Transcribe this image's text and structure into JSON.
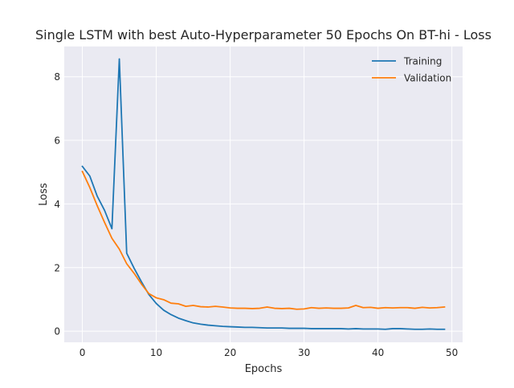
{
  "chart_data": {
    "type": "line",
    "title": "Single LSTM with best Auto-Hyperparameter 50 Epochs On BT-hi - Loss",
    "xlabel": "Epochs",
    "ylabel": "Loss",
    "xlim": [
      -2.45,
      51.45
    ],
    "ylim": [
      -0.35,
      8.95
    ],
    "xticks": [
      0,
      10,
      20,
      30,
      40,
      50
    ],
    "yticks": [
      0,
      2,
      4,
      6,
      8
    ],
    "grid": true,
    "legend_position": "top-right",
    "x": [
      0,
      1,
      2,
      3,
      4,
      5,
      6,
      7,
      8,
      9,
      10,
      11,
      12,
      13,
      14,
      15,
      16,
      17,
      18,
      19,
      20,
      21,
      22,
      23,
      24,
      25,
      26,
      27,
      28,
      29,
      30,
      31,
      32,
      33,
      34,
      35,
      36,
      37,
      38,
      39,
      40,
      41,
      42,
      43,
      44,
      45,
      46,
      47,
      48,
      49
    ],
    "series": [
      {
        "name": "Training",
        "color": "#1f77b4",
        "values": [
          5.18,
          4.88,
          4.25,
          3.8,
          3.22,
          8.56,
          2.45,
          1.98,
          1.55,
          1.15,
          0.87,
          0.66,
          0.52,
          0.41,
          0.33,
          0.26,
          0.22,
          0.19,
          0.17,
          0.15,
          0.14,
          0.13,
          0.12,
          0.12,
          0.11,
          0.1,
          0.1,
          0.1,
          0.09,
          0.09,
          0.09,
          0.08,
          0.08,
          0.08,
          0.08,
          0.08,
          0.07,
          0.08,
          0.07,
          0.07,
          0.07,
          0.06,
          0.08,
          0.08,
          0.07,
          0.06,
          0.06,
          0.07,
          0.06,
          0.06
        ]
      },
      {
        "name": "Validation",
        "color": "#ff7f0e",
        "values": [
          5.02,
          4.52,
          3.95,
          3.42,
          2.92,
          2.58,
          2.12,
          1.82,
          1.48,
          1.18,
          1.05,
          0.99,
          0.88,
          0.86,
          0.78,
          0.81,
          0.77,
          0.76,
          0.78,
          0.76,
          0.73,
          0.72,
          0.72,
          0.71,
          0.72,
          0.76,
          0.72,
          0.71,
          0.72,
          0.69,
          0.7,
          0.74,
          0.72,
          0.73,
          0.72,
          0.72,
          0.73,
          0.81,
          0.74,
          0.75,
          0.72,
          0.74,
          0.73,
          0.74,
          0.74,
          0.72,
          0.75,
          0.73,
          0.74,
          0.76
        ]
      }
    ]
  }
}
